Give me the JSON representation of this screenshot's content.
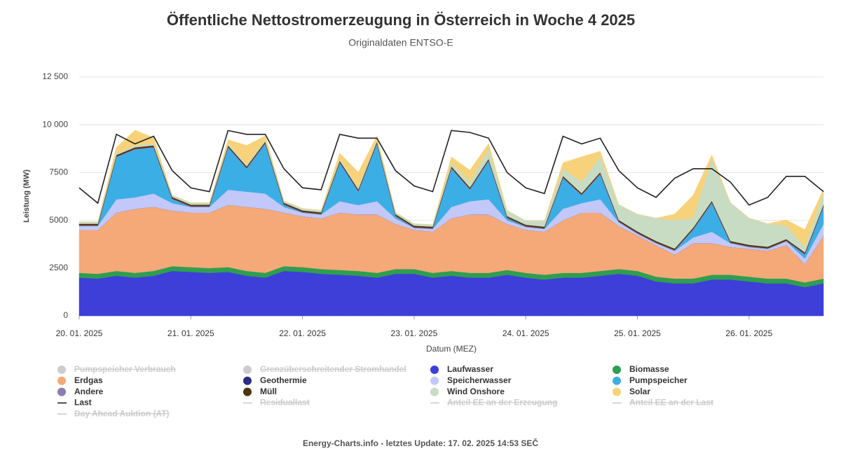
{
  "chart_data": {
    "type": "stacked_area",
    "title": "Öffentliche Nettostromerzeugung in Österreich in Woche 4 2025",
    "subtitle": "Originaldaten ENTSO-E",
    "y_label": "Leistung (MW)",
    "x_label": "Datum (MEZ)",
    "footer": "Energy-Charts.info - letztes Update: 17. 02. 2025 14:53 SEČ",
    "x": [
      0,
      4,
      8,
      12,
      16,
      20,
      24,
      28,
      32,
      36,
      40,
      44,
      48,
      52,
      56,
      60,
      64,
      68,
      72,
      76,
      80,
      84,
      88,
      92,
      96,
      100,
      104,
      108,
      112,
      116,
      120,
      124,
      128,
      132,
      136,
      140,
      144,
      148,
      152,
      156,
      160
    ],
    "xlim": [
      0,
      160
    ],
    "xticks": [
      {
        "value": 0,
        "label": "20. 01. 2025"
      },
      {
        "value": 24,
        "label": "21. 01. 2025"
      },
      {
        "value": 48,
        "label": "22. 01. 2025"
      },
      {
        "value": 72,
        "label": "23. 01. 2025"
      },
      {
        "value": 96,
        "label": "24. 01. 2025"
      },
      {
        "value": 120,
        "label": "25. 01. 2025"
      },
      {
        "value": 144,
        "label": "26. 01. 2025"
      }
    ],
    "ylim": [
      0,
      12500
    ],
    "yticks": [
      0,
      {
        "value": 2500,
        "label": "2500"
      },
      5000,
      7500,
      {
        "value": 10000,
        "label": "10 000"
      },
      {
        "value": 12500,
        "label": "12 500"
      }
    ],
    "grid": true,
    "series": [
      {
        "name": "Pumpspeicher Verbrauch",
        "kind": "area",
        "color": "#cccccc",
        "hidden": true
      },
      {
        "name": "Grenzüberschreitender Stromhandel",
        "kind": "area",
        "color": "#cccccc",
        "hidden": true
      },
      {
        "name": "Laufwasser",
        "kind": "area",
        "color": "#3d3fd8",
        "values": [
          2000,
          1950,
          2100,
          2000,
          2100,
          2350,
          2300,
          2250,
          2300,
          2100,
          2000,
          2350,
          2300,
          2200,
          2150,
          2100,
          2000,
          2200,
          2200,
          2000,
          2100,
          2000,
          2000,
          2150,
          2000,
          1900,
          2000,
          2000,
          2100,
          2200,
          2100,
          1800,
          1700,
          1700,
          1900,
          1900,
          1800,
          1700,
          1700,
          1500,
          1700
        ]
      },
      {
        "name": "Biomasse",
        "kind": "area",
        "color": "#2e9e4f",
        "values": [
          250,
          250,
          250,
          250,
          250,
          250,
          250,
          250,
          250,
          250,
          250,
          250,
          250,
          250,
          250,
          250,
          250,
          250,
          250,
          250,
          250,
          250,
          250,
          250,
          250,
          250,
          250,
          250,
          250,
          250,
          250,
          250,
          250,
          250,
          250,
          250,
          250,
          250,
          250,
          250,
          250
        ]
      },
      {
        "name": "Erdgas",
        "kind": "area",
        "color": "#f5a878",
        "values": [
          2250,
          2300,
          3050,
          3350,
          3350,
          2900,
          2850,
          2900,
          3250,
          3350,
          3350,
          2800,
          2650,
          2650,
          3000,
          2950,
          3050,
          2350,
          2050,
          2150,
          2750,
          3050,
          3050,
          2400,
          2250,
          2250,
          2750,
          3150,
          3050,
          2250,
          1850,
          1650,
          1250,
          1850,
          1650,
          1450,
          1450,
          1450,
          1750,
          950,
          2250
        ]
      },
      {
        "name": "Geothermie",
        "kind": "area",
        "color": "#2c2c86",
        "values": [
          0,
          0,
          0,
          0,
          0,
          0,
          0,
          0,
          0,
          0,
          0,
          0,
          0,
          0,
          0,
          0,
          0,
          0,
          0,
          0,
          0,
          0,
          0,
          0,
          0,
          0,
          0,
          0,
          0,
          0,
          0,
          0,
          0,
          0,
          0,
          0,
          0,
          0,
          0,
          0,
          0
        ]
      },
      {
        "name": "Speicherwasser",
        "kind": "area",
        "color": "#c2c8fa",
        "values": [
          200,
          200,
          700,
          600,
          700,
          400,
          300,
          300,
          800,
          800,
          800,
          300,
          200,
          200,
          600,
          500,
          700,
          300,
          100,
          150,
          600,
          700,
          800,
          200,
          150,
          150,
          600,
          500,
          700,
          200,
          100,
          100,
          200,
          300,
          600,
          200,
          100,
          100,
          200,
          300,
          600
        ]
      },
      {
        "name": "Pumpspeicher",
        "kind": "area",
        "color": "#3caee6",
        "values": [
          0,
          0,
          2200,
          2500,
          2400,
          200,
          0,
          0,
          2200,
          1200,
          2600,
          100,
          0,
          0,
          2000,
          700,
          3000,
          100,
          0,
          0,
          2000,
          600,
          2000,
          100,
          0,
          0,
          1600,
          400,
          1300,
          0,
          0,
          0,
          0,
          400,
          1500,
          0,
          0,
          0,
          0,
          200,
          900
        ]
      },
      {
        "name": "Andere",
        "kind": "area",
        "color": "#8f7bb0",
        "values": [
          40,
          40,
          40,
          40,
          40,
          40,
          40,
          40,
          40,
          40,
          40,
          40,
          40,
          40,
          40,
          40,
          40,
          40,
          40,
          40,
          40,
          40,
          40,
          40,
          40,
          40,
          40,
          40,
          40,
          40,
          40,
          40,
          40,
          40,
          40,
          40,
          40,
          40,
          40,
          40,
          40
        ]
      },
      {
        "name": "Müll",
        "kind": "area",
        "color": "#4d3411",
        "values": [
          80,
          80,
          80,
          80,
          80,
          80,
          80,
          80,
          80,
          80,
          80,
          80,
          80,
          80,
          80,
          80,
          80,
          80,
          80,
          80,
          80,
          80,
          80,
          80,
          80,
          80,
          80,
          80,
          80,
          80,
          80,
          80,
          80,
          80,
          80,
          80,
          80,
          80,
          80,
          80,
          80
        ]
      },
      {
        "name": "Wind Onshore",
        "kind": "area",
        "color": "#c8dcc4",
        "values": [
          100,
          100,
          100,
          100,
          100,
          100,
          100,
          100,
          100,
          100,
          100,
          100,
          100,
          100,
          100,
          100,
          100,
          100,
          100,
          100,
          200,
          300,
          500,
          300,
          200,
          300,
          400,
          600,
          800,
          800,
          900,
          1200,
          1500,
          500,
          2200,
          2000,
          1400,
          1200,
          700,
          300,
          600
        ]
      },
      {
        "name": "Solar",
        "kind": "area",
        "color": "#f8d27a",
        "values": [
          0,
          0,
          300,
          800,
          300,
          0,
          0,
          0,
          200,
          1000,
          200,
          0,
          0,
          0,
          300,
          800,
          200,
          0,
          0,
          0,
          300,
          600,
          300,
          0,
          0,
          0,
          300,
          1300,
          300,
          0,
          0,
          0,
          300,
          1200,
          200,
          0,
          0,
          0,
          300,
          900,
          200
        ]
      },
      {
        "name": "Last",
        "kind": "line",
        "color": "#222222",
        "values": [
          6700,
          5900,
          9500,
          9000,
          9400,
          7600,
          6700,
          6500,
          9700,
          9500,
          9500,
          7700,
          6700,
          6600,
          9500,
          9300,
          9300,
          7600,
          6800,
          6500,
          9700,
          9600,
          9300,
          7500,
          6700,
          6400,
          9400,
          9000,
          9300,
          7600,
          6700,
          6200,
          7200,
          7700,
          7700,
          7000,
          5800,
          6200,
          7300,
          7300,
          6500
        ]
      },
      {
        "name": "Residuallast",
        "kind": "line",
        "color": "#cccccc",
        "hidden": true
      },
      {
        "name": "Anteil EE an der Erzeugung",
        "kind": "line",
        "color": "#cccccc",
        "hidden": true
      },
      {
        "name": "Anteil EE an der Last",
        "kind": "line",
        "color": "#cccccc",
        "hidden": true
      },
      {
        "name": "Day Ahead Auktion (AT)",
        "kind": "line",
        "color": "#cccccc",
        "hidden": true
      }
    ]
  }
}
